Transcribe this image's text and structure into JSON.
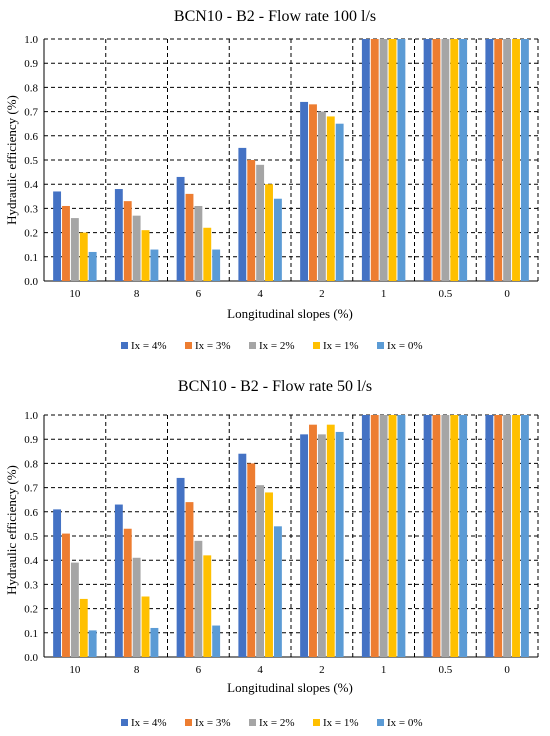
{
  "chart_data": [
    {
      "type": "bar",
      "title": "BCN10 - B2 - Flow rate 100 l/s",
      "xlabel": "Longitudinal slopes (%)",
      "ylabel": "Hydraulic efficiency (%)",
      "ylim": [
        0,
        1
      ],
      "yticks": [
        "0.0",
        "0.1",
        "0.2",
        "0.3",
        "0.4",
        "0.5",
        "0.6",
        "0.7",
        "0.8",
        "0.9",
        "1.0"
      ],
      "grid": true,
      "legend_position": "bottom",
      "categories": [
        "10",
        "8",
        "6",
        "4",
        "2",
        "1",
        "0.5",
        "0"
      ],
      "series": [
        {
          "name": "Ix = 4%",
          "color": "#4472C4",
          "values": [
            0.37,
            0.38,
            0.43,
            0.55,
            0.74,
            1.0,
            1.0,
            1.0
          ]
        },
        {
          "name": "Ix = 3%",
          "color": "#ED7D31",
          "values": [
            0.31,
            0.33,
            0.36,
            0.5,
            0.73,
            1.0,
            1.0,
            1.0
          ]
        },
        {
          "name": "Ix = 2%",
          "color": "#A5A5A5",
          "values": [
            0.26,
            0.27,
            0.31,
            0.48,
            0.7,
            1.0,
            1.0,
            1.0
          ]
        },
        {
          "name": "Ix = 1%",
          "color": "#FFC000",
          "values": [
            0.2,
            0.21,
            0.22,
            0.4,
            0.68,
            1.0,
            1.0,
            1.0
          ]
        },
        {
          "name": "Ix = 0%",
          "color": "#5B9BD5",
          "values": [
            0.12,
            0.13,
            0.13,
            0.34,
            0.65,
            1.0,
            1.0,
            1.0
          ]
        }
      ]
    },
    {
      "type": "bar",
      "title": "BCN10 - B2 - Flow rate 50 l/s",
      "xlabel": "Longitudinal slopes (%)",
      "ylabel": "Hydraulic efficiency (%)",
      "ylim": [
        0,
        1
      ],
      "yticks": [
        "0.0",
        "0.1",
        "0.2",
        "0.3",
        "0.4",
        "0.5",
        "0.6",
        "0.7",
        "0.8",
        "0.9",
        "1.0"
      ],
      "grid": true,
      "legend_position": "bottom",
      "categories": [
        "10",
        "8",
        "6",
        "4",
        "2",
        "1",
        "0.5",
        "0"
      ],
      "series": [
        {
          "name": "Ix = 4%",
          "color": "#4472C4",
          "values": [
            0.61,
            0.63,
            0.74,
            0.84,
            0.92,
            1.0,
            1.0,
            1.0
          ]
        },
        {
          "name": "Ix = 3%",
          "color": "#ED7D31",
          "values": [
            0.51,
            0.53,
            0.64,
            0.8,
            0.96,
            1.0,
            1.0,
            1.0
          ]
        },
        {
          "name": "Ix = 2%",
          "color": "#A5A5A5",
          "values": [
            0.39,
            0.41,
            0.48,
            0.71,
            0.92,
            1.0,
            1.0,
            1.0
          ]
        },
        {
          "name": "Ix = 1%",
          "color": "#FFC000",
          "values": [
            0.24,
            0.25,
            0.42,
            0.68,
            0.96,
            1.0,
            1.0,
            1.0
          ]
        },
        {
          "name": "Ix = 0%",
          "color": "#5B9BD5",
          "values": [
            0.11,
            0.12,
            0.13,
            0.54,
            0.93,
            1.0,
            1.0,
            1.0
          ]
        }
      ]
    }
  ]
}
